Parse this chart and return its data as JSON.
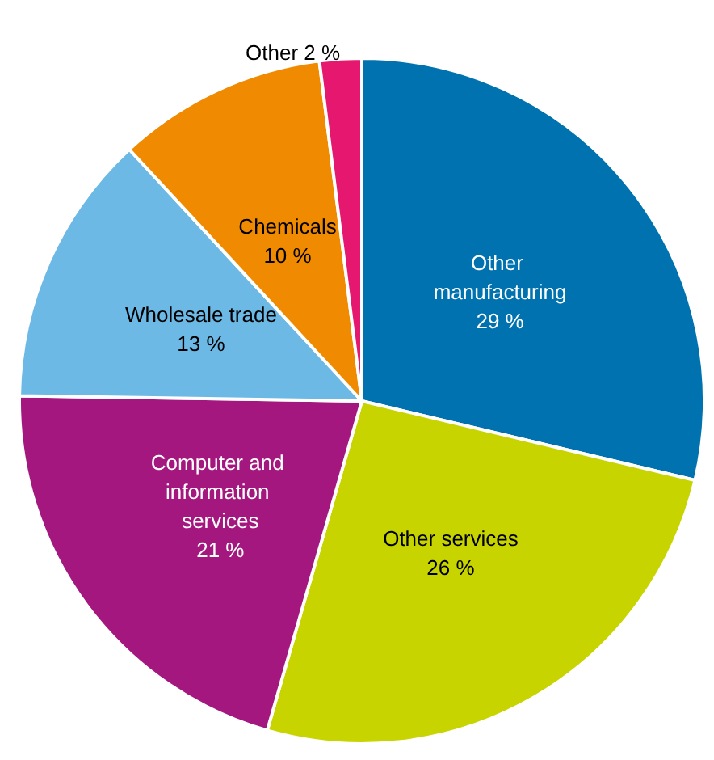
{
  "chart_data": {
    "type": "pie",
    "categories": [
      "Other manufacturing",
      "Other services",
      "Computer and information services",
      "Wholesale trade",
      "Chemicals",
      "Other"
    ],
    "values": [
      29,
      26,
      21,
      13,
      10,
      2
    ],
    "colors": [
      "#0072b0",
      "#c8d400",
      "#a3177f",
      "#6cb9e6",
      "#f08a00",
      "#e5176e"
    ],
    "value_labels": [
      "29 %",
      "26 %",
      "21 %",
      "13 %",
      "10 %",
      "2 %"
    ],
    "legend": false
  }
}
